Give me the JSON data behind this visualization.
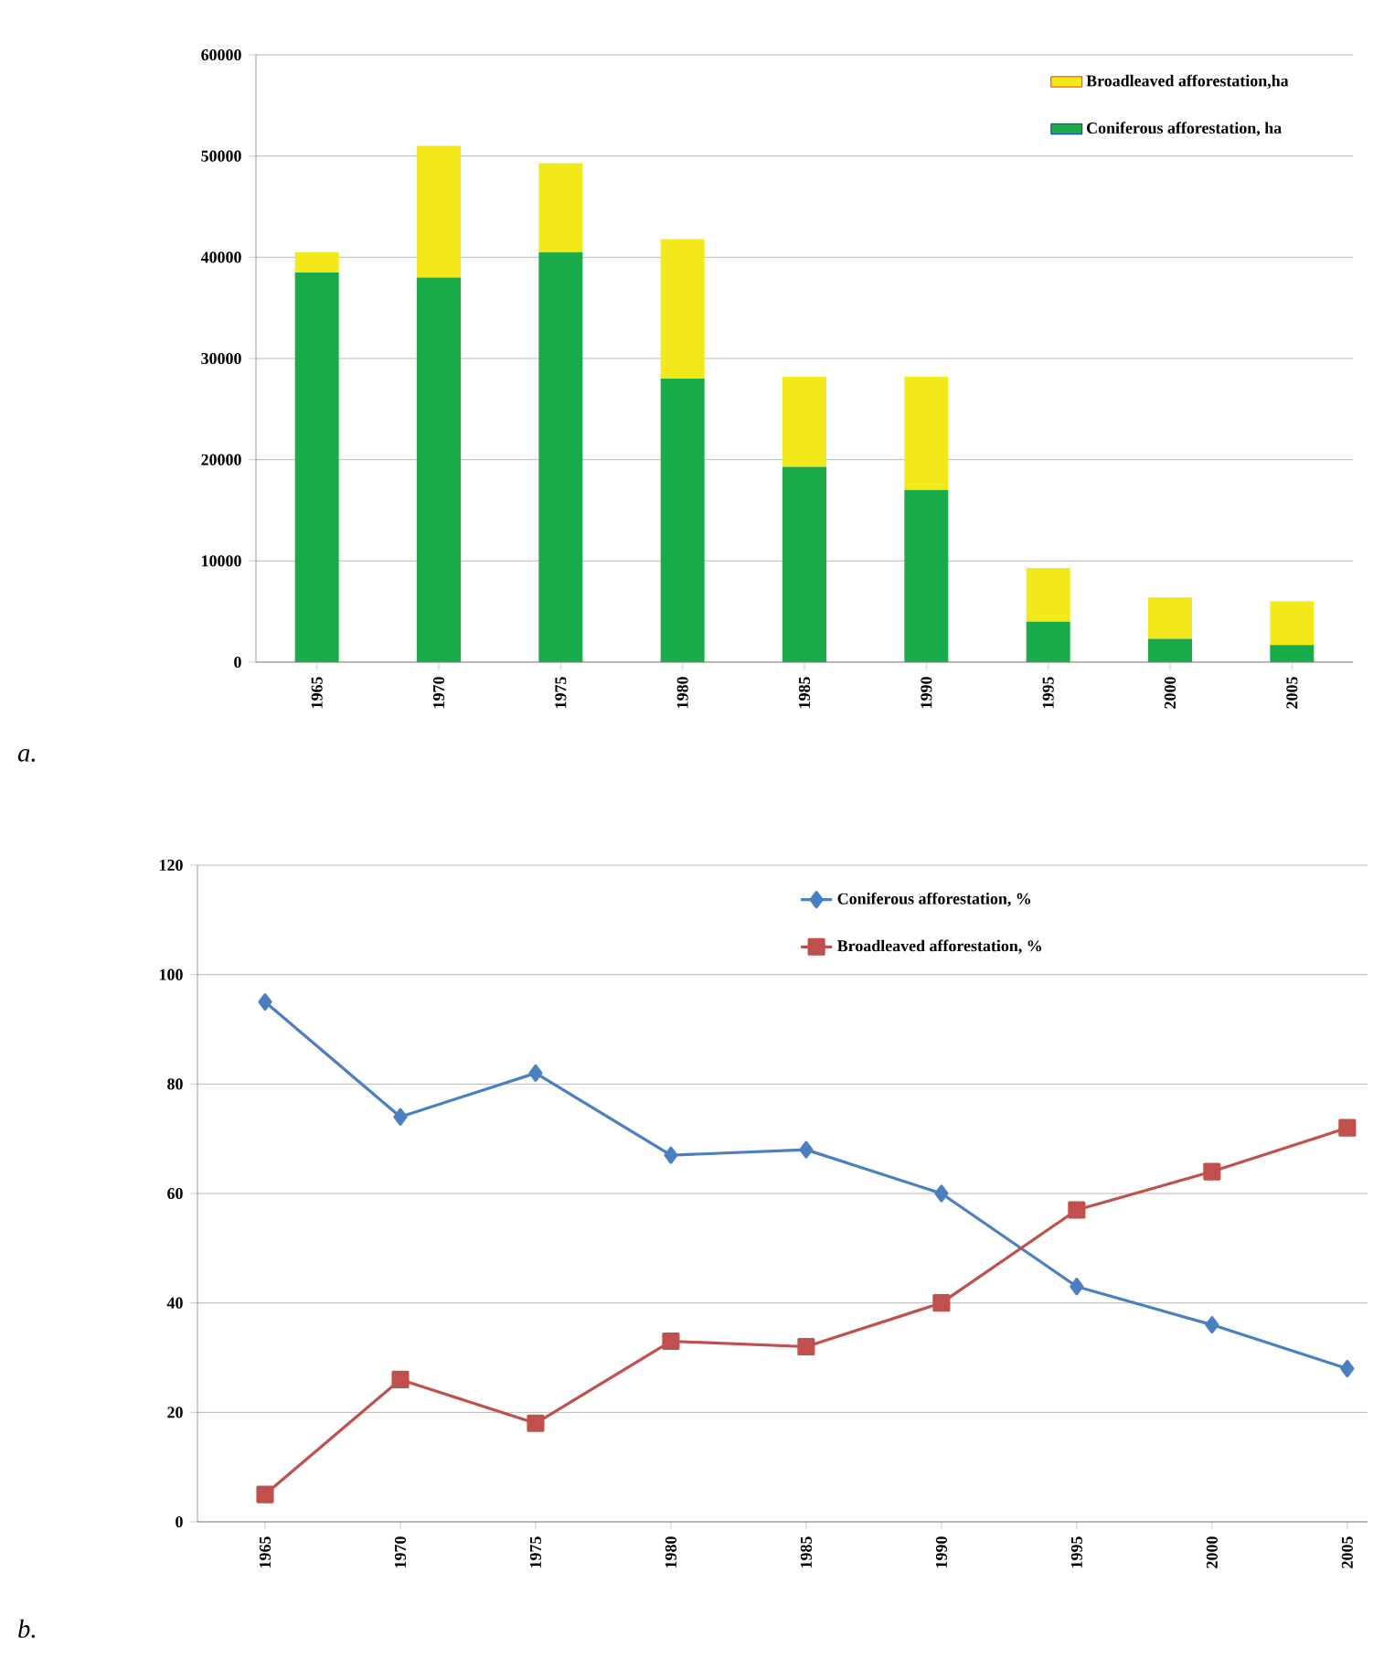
{
  "chart_data": [
    {
      "type": "bar",
      "stacked": true,
      "categories": [
        "1965",
        "1970",
        "1975",
        "1980",
        "1985",
        "1990",
        "1995",
        "2000",
        "2005"
      ],
      "series": [
        {
          "name": "Coniferous afforestation, ha",
          "color": "#1aab4b",
          "values": [
            38500,
            38000,
            40500,
            28000,
            19300,
            17000,
            4000,
            2300,
            1700
          ]
        },
        {
          "name": "Broadleaved afforestation,ha",
          "color": "#f2e81a",
          "values": [
            2000,
            13000,
            8800,
            13800,
            8900,
            11200,
            5300,
            4100,
            4300
          ]
        }
      ],
      "ylim": [
        0,
        60000
      ],
      "yticks": [
        0,
        10000,
        20000,
        30000,
        40000,
        50000,
        60000
      ],
      "grid": "y",
      "legend": "top right",
      "annotations": [
        "a."
      ]
    },
    {
      "type": "line",
      "categories": [
        "1965",
        "1970",
        "1975",
        "1980",
        "1985",
        "1990",
        "1995",
        "2000",
        "2005"
      ],
      "series": [
        {
          "name": "Coniferous afforestation, %",
          "color": "#4a7fc1",
          "marker": "diamond",
          "values": [
            95,
            74,
            82,
            67,
            68,
            60,
            43,
            36,
            28
          ]
        },
        {
          "name": "Broadleaved afforestation, %",
          "color": "#c0504d",
          "marker": "square",
          "values": [
            5,
            26,
            18,
            33,
            32,
            40,
            57,
            64,
            72
          ]
        }
      ],
      "ylim": [
        0,
        120
      ],
      "yticks": [
        0,
        20,
        40,
        60,
        80,
        100,
        120
      ],
      "grid": "y",
      "legend": "top",
      "annotations": [
        "b."
      ]
    }
  ]
}
